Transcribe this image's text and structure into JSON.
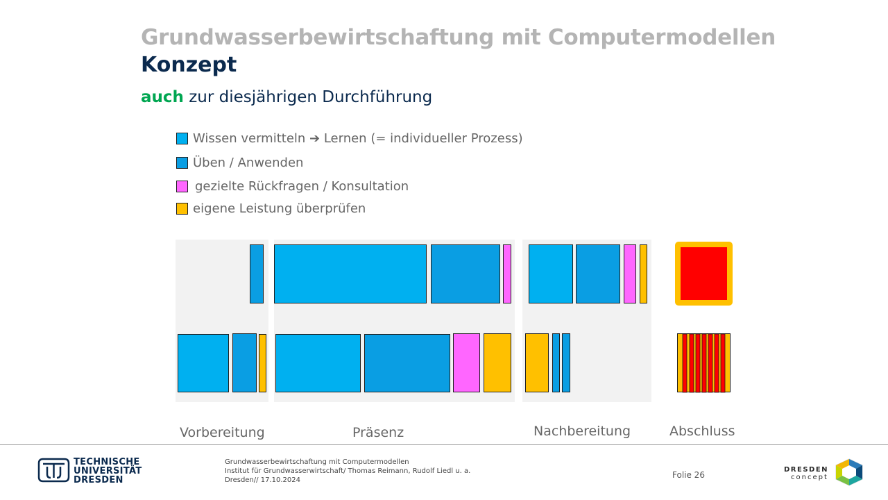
{
  "header": {
    "title": "Grundwasserbewirtschaftung mit Computermodellen",
    "subtitle": "Konzept"
  },
  "intro": {
    "highlight": "auch",
    "rest": " zur diesjährigen Durchführung"
  },
  "legend": [
    {
      "label": "Wissen vermitteln ➔ Lernen (= individueller Prozess)",
      "color": "#00b0f0"
    },
    {
      "label": "Üben / Anwenden",
      "color": "#0a9ee3"
    },
    {
      "label": "gezielte Rückfragen / Konsultation",
      "color": "#ff66ff"
    },
    {
      "label": "eigene Leistung überprüfen",
      "color": "#ffc000"
    }
  ],
  "phases": [
    {
      "label": "Vorbereitung"
    },
    {
      "label": "Präsenz"
    },
    {
      "label": "Nachbereitung"
    },
    {
      "label": "Abschluss"
    }
  ],
  "colors": {
    "wissen": "#00b0f0",
    "ueben": "#0a9ee3",
    "rueckfragen": "#ff66ff",
    "pruefen": "#ffc000",
    "abschluss_red": "#ff0000",
    "panel": "#f2f2f2"
  },
  "footer": {
    "university": [
      "TECHNISCHE",
      "UNIVERSITÄT",
      "DRESDEN"
    ],
    "lines": [
      "Grundwasserbewirtschaftung mit Computermodellen",
      "Institut für Grundwasserwirtschaft/ Thomas Reimann, Rudolf Liedl u. a.",
      "Dresden// 17.10.2024"
    ],
    "slide": "Folie 26",
    "partner": [
      "DRESDEN",
      "concept"
    ]
  }
}
